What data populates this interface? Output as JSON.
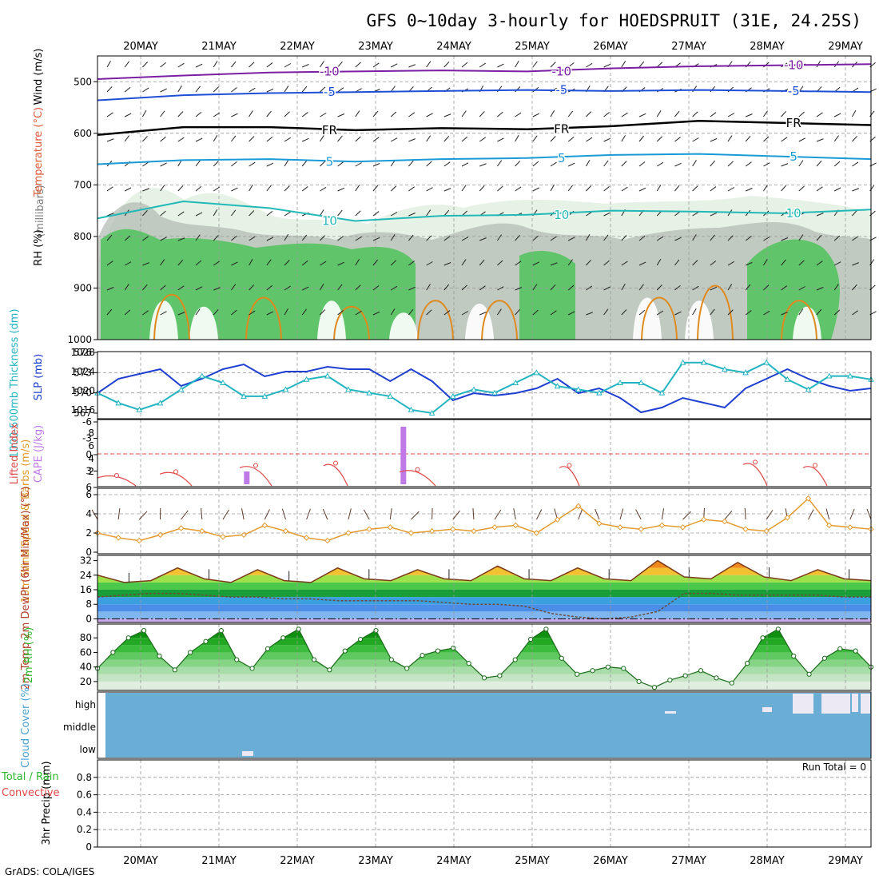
{
  "header": {
    "title": "GFS 0~10day 3-hourly for HOEDSPRUIT (31E, 24.25S)"
  },
  "footer": {
    "credit": "GrADS: COLA/IGES"
  },
  "colors": {
    "frame": "#000000",
    "grid": "#9a9a9a",
    "temp_cold": "#7b1fa2",
    "temp_cool": "#1f4fd6",
    "temp_freeze": "#000000",
    "temp_mild": "#1a9ad6",
    "temp_warm": "#22b8b8",
    "temp_hot": "#e08a1e",
    "rh_light": "#e6f2e6",
    "rh_gray": "#b4bcb4",
    "rh_green": "#4fc45a",
    "slp": "#1f3fd0",
    "thickness": "#22b4c0",
    "lifted": "#e04848",
    "cape": "#c07ae8",
    "wind10": "#e39a2e",
    "cloud": "#6aaed6",
    "cloud_gap": "#ece8f4",
    "rh2m": "#2db82d"
  },
  "chart_data": [
    {
      "id": "upper",
      "type": "contour",
      "x_dates": [
        "20MAY",
        "21MAY",
        "22MAY",
        "23MAY",
        "24MAY",
        "25MAY",
        "26MAY",
        "27MAY",
        "28MAY",
        "29MAY"
      ],
      "y_ticks": [
        "500",
        "600",
        "700",
        "800",
        "900",
        "1000"
      ],
      "y_unit": "(millibars)",
      "legend_temperature": "Temperature (°C)",
      "legend_wind": "Wind (m/s)",
      "legend_rh": "RH (%)",
      "ylim": [
        450,
        1000
      ],
      "isotherms": [
        {
          "label": "-10",
          "values_mb": [
            495,
            488,
            482,
            480,
            478,
            480,
            474,
            470,
            468,
            466
          ]
        },
        {
          "label": "-5",
          "values_mb": [
            536,
            526,
            522,
            520,
            518,
            516,
            518,
            516,
            518,
            520
          ]
        },
        {
          "label": "FR",
          "values_mb": [
            603,
            588,
            588,
            594,
            590,
            592,
            586,
            576,
            580,
            584
          ]
        },
        {
          "label": "5",
          "values_mb": [
            660,
            652,
            650,
            655,
            650,
            648,
            642,
            640,
            645,
            650
          ]
        },
        {
          "label": "10",
          "values_mb": [
            765,
            732,
            745,
            770,
            760,
            758,
            750,
            752,
            755,
            748
          ]
        }
      ]
    },
    {
      "id": "slp_thickness",
      "type": "line",
      "y_left_label": "1000-500mb Thickness (dm)",
      "y_left_ticks": [
        "567",
        "570",
        "573",
        "576"
      ],
      "y_right_label": "SLP (mb)",
      "y_right_ticks": [
        "1016",
        "1020",
        "1024",
        "1028"
      ],
      "series": [
        {
          "name": "SLP (mb)",
          "values": [
            1019.5,
            1022.5,
            1023.5,
            1024.5,
            1021,
            1022.5,
            1024.5,
            1025.5,
            1023,
            1024,
            1024,
            1025,
            1024.5,
            1024.5,
            1022,
            1024.5,
            1022,
            1018,
            1019.5,
            1019,
            1019.5,
            1020.5,
            1022.5,
            1019.5,
            1020.5,
            1018.5,
            1015.5,
            1016.5,
            1018.5,
            1017.5,
            1016.5,
            1020.5,
            1022.5,
            1024.5,
            1022.5,
            1021,
            1020,
            1020.5
          ]
        },
        {
          "name": "1000-500mb Thickness (dm)",
          "values": [
            570,
            568.5,
            567.5,
            568.5,
            570.5,
            572.5,
            571.5,
            569.5,
            569.5,
            570.5,
            572,
            572.5,
            570.5,
            570,
            569.5,
            567.5,
            567,
            569.5,
            570.5,
            570,
            571.5,
            573,
            571,
            570.5,
            570,
            571.5,
            571.5,
            570,
            574.5,
            574.5,
            573.5,
            573,
            574.5,
            572,
            570.5,
            572.5,
            572.5,
            572
          ]
        }
      ]
    },
    {
      "id": "stability",
      "type": "bar",
      "y_left_label": "Lifted Index",
      "y_left_ticks": [
        "-6",
        "-3",
        "0",
        "3",
        "6"
      ],
      "y_right_label": "CAPE (J/kg)",
      "y_right_ticks": [
        "2",
        "4",
        "6",
        "8"
      ],
      "cape_bars": [
        {
          "day_index": 1.35,
          "value": 2
        },
        {
          "day_index": 3.35,
          "value": 9
        }
      ],
      "lifted_index_values": [
        4.5,
        4.5,
        5,
        6,
        6,
        4,
        4,
        5,
        6,
        5.5,
        6.2,
        6.5
      ]
    },
    {
      "id": "wind10m",
      "type": "line",
      "y_label": "10m Wind Speed & Barbs (m/s)",
      "y_ticks": [
        "0",
        "2",
        "4",
        "6"
      ],
      "series": [
        {
          "name": "10m Wind Speed",
          "values": [
            2,
            1.5,
            1.2,
            1.8,
            2.5,
            2.2,
            1.6,
            1.8,
            2.8,
            2.2,
            1.5,
            1.2,
            2,
            2.4,
            2.6,
            2,
            2.2,
            2.4,
            2.2,
            2.6,
            2.8,
            2,
            3.4,
            4.8,
            3,
            2.6,
            2.4,
            2.8,
            2.6,
            3.4,
            3.2,
            2.4,
            2.2,
            3.6,
            5.6,
            2.8,
            2.6,
            2.4
          ]
        }
      ]
    },
    {
      "id": "temp2m",
      "type": "area",
      "y_label": "2m Temp 2m DewPt (6hr Min/Max) (°C)",
      "y_ticks": [
        "0",
        "8",
        "16",
        "24",
        "32"
      ],
      "temp_values": [
        24,
        20,
        21,
        28,
        22,
        20,
        27,
        21,
        20,
        28,
        22,
        21,
        27,
        22,
        21,
        29,
        22,
        21,
        28,
        22,
        21,
        32,
        23,
        22,
        31,
        23,
        21,
        27,
        22,
        21
      ],
      "dewpoint_values": [
        12,
        13,
        14,
        14,
        13,
        12,
        12,
        11,
        11,
        10,
        10,
        10,
        10,
        9,
        8,
        8,
        7,
        3,
        1,
        0,
        1,
        4,
        14,
        14,
        13,
        13,
        13,
        13,
        12,
        12
      ]
    },
    {
      "id": "rh2m",
      "type": "area",
      "y_label": "2m RH (%)",
      "y_ticks": [
        "20",
        "40",
        "60",
        "80"
      ],
      "series": [
        {
          "name": "2m RH",
          "values": [
            38,
            60,
            80,
            90,
            55,
            36,
            60,
            75,
            90,
            50,
            38,
            65,
            80,
            92,
            50,
            36,
            62,
            78,
            90,
            50,
            38,
            56,
            62,
            66,
            45,
            25,
            28,
            50,
            78,
            92,
            52,
            30,
            35,
            40,
            38,
            20,
            12,
            22,
            28,
            35,
            25,
            18,
            45,
            80,
            92,
            55,
            30,
            52,
            65,
            62,
            40
          ]
        }
      ]
    },
    {
      "id": "cloud",
      "type": "heatmap",
      "y_label": "Cloud Cover (%)",
      "y_ticks": [
        "low",
        "middle",
        "high"
      ]
    },
    {
      "id": "precip",
      "type": "bar",
      "y_label": "3hr Precip (mm)",
      "y_ticks": [
        "0",
        "0.2",
        "0.4",
        "0.6",
        "0.8"
      ],
      "legend_total": "Total / Rain",
      "legend_convective": "Convective",
      "run_total": "Run Total = 0",
      "values": []
    }
  ]
}
